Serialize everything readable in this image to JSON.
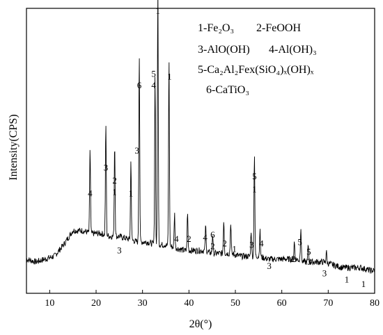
{
  "chart_data": {
    "type": "line",
    "xlabel": "2θ(°)",
    "ylabel": "Intensity(CPS)",
    "xlim": [
      5,
      80
    ],
    "ylim": [
      0,
      100
    ],
    "x_ticks": [
      "10",
      "20",
      "30",
      "40",
      "50",
      "60",
      "70",
      "80"
    ],
    "grid": false,
    "legend": [
      {
        "id": "1",
        "label": "1-Fe₂O₃"
      },
      {
        "id": "2",
        "label": "2-FeOOH"
      },
      {
        "id": "3",
        "label": "3-AlO(OH)"
      },
      {
        "id": "4",
        "label": "4-Al(OH)₃"
      },
      {
        "id": "5",
        "label": "5-Ca₂Al₂Fex(SiO₄)ₓ(OH)ₓ"
      },
      {
        "id": "6",
        "label": "6-CaTiO₃"
      }
    ],
    "legend_position": "top-right",
    "series": [
      {
        "values_xy": [
          [
            5,
            12
          ],
          [
            7,
            11
          ],
          [
            9,
            12
          ],
          [
            11,
            13
          ],
          [
            13,
            17
          ],
          [
            15,
            22
          ],
          [
            17,
            22
          ],
          [
            19,
            21
          ],
          [
            21,
            21
          ],
          [
            23,
            20
          ],
          [
            25,
            20
          ],
          [
            27,
            19
          ],
          [
            29,
            18
          ],
          [
            31,
            18
          ],
          [
            33,
            17
          ],
          [
            35,
            17
          ],
          [
            37,
            16
          ],
          [
            39,
            15
          ],
          [
            41,
            15
          ],
          [
            43,
            15
          ],
          [
            45,
            14
          ],
          [
            47,
            14
          ],
          [
            49,
            14
          ],
          [
            51,
            13
          ],
          [
            53,
            13
          ],
          [
            55,
            13
          ],
          [
            57,
            12
          ],
          [
            59,
            12
          ],
          [
            61,
            12
          ],
          [
            63,
            12
          ],
          [
            65,
            11
          ],
          [
            67,
            11
          ],
          [
            69,
            11
          ],
          [
            71,
            10
          ],
          [
            73,
            9
          ],
          [
            75,
            9
          ],
          [
            77,
            9
          ],
          [
            79,
            8
          ],
          [
            80,
            8
          ]
        ],
        "peaks": [
          [
            18.7,
            30
          ],
          [
            22.1,
            39
          ],
          [
            24.0,
            33
          ],
          [
            27.5,
            28
          ],
          [
            29.3,
            67
          ],
          [
            32.7,
            60
          ],
          [
            33.3,
            92
          ],
          [
            35.7,
            66
          ],
          [
            36.9,
            12
          ],
          [
            39.7,
            13
          ],
          [
            43.6,
            9
          ],
          [
            45.1,
            7
          ],
          [
            47.5,
            12
          ],
          [
            49.0,
            11
          ],
          [
            53.4,
            9
          ],
          [
            54.1,
            36
          ],
          [
            55.3,
            9
          ],
          [
            62.7,
            6
          ],
          [
            64.1,
            12
          ],
          [
            65.7,
            6
          ],
          [
            69.6,
            4
          ]
        ]
      }
    ],
    "annotations": [
      {
        "text": "4",
        "x": 18.7,
        "y": 34
      },
      {
        "text": "3",
        "x": 22.1,
        "y": 43
      },
      {
        "text": "2",
        "x": 24.0,
        "y": 38.5
      },
      {
        "text": "1",
        "x": 24.0,
        "y": 34.5
      },
      {
        "text": "3",
        "x": 25.0,
        "y": 14
      },
      {
        "text": "1",
        "x": 27.5,
        "y": 34
      },
      {
        "text": "3",
        "x": 28.8,
        "y": 49
      },
      {
        "text": "6",
        "x": 29.3,
        "y": 72
      },
      {
        "text": "5",
        "x": 32.4,
        "y": 76
      },
      {
        "text": "4",
        "x": 32.4,
        "y": 72
      },
      {
        "text": "1",
        "x": 33.3,
        "y": 98
      },
      {
        "text": "1",
        "x": 35.8,
        "y": 75
      },
      {
        "text": "4",
        "x": 37.3,
        "y": 18
      },
      {
        "text": "2",
        "x": 40.0,
        "y": 18
      },
      {
        "text": "4",
        "x": 43.5,
        "y": 18.5
      },
      {
        "text": "6",
        "x": 45.1,
        "y": 19.5
      },
      {
        "text": "2",
        "x": 45.1,
        "y": 15.5
      },
      {
        "text": "2",
        "x": 47.7,
        "y": 16.5
      },
      {
        "text": "1",
        "x": 49.8,
        "y": 14.5
      },
      {
        "text": "3",
        "x": 53.5,
        "y": 16
      },
      {
        "text": "5",
        "x": 54.1,
        "y": 40
      },
      {
        "text": "1",
        "x": 54.1,
        "y": 35.5
      },
      {
        "text": "4",
        "x": 55.6,
        "y": 16.5
      },
      {
        "text": "3",
        "x": 57.3,
        "y": 8.5
      },
      {
        "text": "2",
        "x": 62.5,
        "y": 11
      },
      {
        "text": "5",
        "x": 63.9,
        "y": 17
      },
      {
        "text": "5",
        "x": 65.8,
        "y": 13.5
      },
      {
        "text": "3",
        "x": 66.0,
        "y": 10
      },
      {
        "text": "3",
        "x": 69.2,
        "y": 6
      },
      {
        "text": "1",
        "x": 74.0,
        "y": 3.8
      },
      {
        "text": "1",
        "x": 77.6,
        "y": 2.2
      }
    ]
  }
}
